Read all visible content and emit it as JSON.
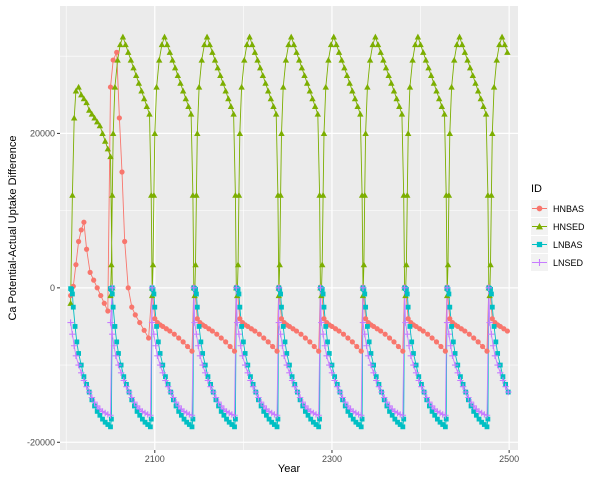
{
  "chart_data": {
    "type": "line",
    "xlabel": "Year",
    "ylabel": "Ca Potential-Actual Uptake Difference",
    "xlim": [
      1993,
      2510
    ],
    "ylim": [
      -21000,
      36500
    ],
    "x_ticks": [
      2100,
      2300,
      2500
    ],
    "y_ticks": [
      -20000,
      0,
      20000
    ],
    "x_tick_labels": [
      "2100",
      "2300",
      "2500"
    ],
    "y_tick_labels": [
      "-20000",
      "0",
      "20000"
    ],
    "grid": true,
    "legend": {
      "title": "ID",
      "position": "right",
      "entries": [
        {
          "label": "HNBAS",
          "color": "#F8766D",
          "marker": "circle"
        },
        {
          "label": "HNSED",
          "color": "#7CAE00",
          "marker": "triangle"
        },
        {
          "label": "LNBAS",
          "color": "#00BFC4",
          "marker": "square"
        },
        {
          "label": "LNSED",
          "color": "#C77CFF",
          "marker": "plus"
        }
      ]
    },
    "cycle": {
      "starts": [
        2005,
        2050,
        2097,
        2145,
        2193,
        2240,
        2288,
        2335,
        2383,
        2430,
        2478
      ],
      "length": 47
    },
    "series": [
      {
        "name": "HNBAS",
        "color": "#F8766D",
        "marker": "circle",
        "first_cycle": {
          "x": [
            2005,
            2008,
            2011,
            2014,
            2017,
            2020,
            2023,
            2027,
            2031,
            2035,
            2039,
            2043,
            2047
          ],
          "y": [
            -1000,
            200,
            3000,
            6000,
            7500,
            8500,
            5000,
            2000,
            1000,
            0,
            -1000,
            -2000,
            -3000
          ]
        },
        "peak_cycle_x": [
          2050,
          2053,
          2057,
          2060,
          2063,
          2066,
          2070,
          2074,
          2078,
          2083,
          2088,
          2093
        ],
        "peak_cycle_y": [
          26000,
          29500,
          30500,
          22000,
          15000,
          6000,
          0,
          -2500,
          -3500,
          -4500,
          -5500,
          -6500
        ],
        "typical_cycle": {
          "dx": [
            0,
            3,
            6,
            9,
            12,
            16,
            20,
            25,
            30,
            35,
            40,
            45,
            47
          ],
          "y": [
            -100,
            -4000,
            -4500,
            -4800,
            -5000,
            -5300,
            -5600,
            -6000,
            -6500,
            -7000,
            -7600,
            -8200,
            100
          ]
        }
      },
      {
        "name": "HNSED",
        "color": "#7CAE00",
        "marker": "triangle",
        "cycle_peak": 33000,
        "typical_cycle": {
          "dx": [
            0,
            1,
            2,
            3,
            5,
            8,
            11,
            14,
            17,
            20,
            23,
            26,
            29,
            32,
            35,
            38,
            41,
            44,
            46,
            47
          ],
          "y": [
            -1000,
            3000,
            12000,
            20000,
            26000,
            29500,
            31500,
            32500,
            31500,
            30500,
            29500,
            28500,
            27500,
            26500,
            25500,
            24500,
            23500,
            22500,
            12000,
            0
          ]
        },
        "first_cycle": {
          "dx": [
            0,
            2,
            4,
            6,
            9,
            12,
            15,
            18,
            21,
            24,
            27,
            30,
            33,
            36,
            39,
            42,
            45,
            47
          ],
          "y": [
            -2000,
            12000,
            22000,
            25500,
            26000,
            25000,
            24500,
            24000,
            23000,
            22500,
            22000,
            21500,
            21000,
            20000,
            19000,
            18000,
            17000,
            0
          ]
        }
      },
      {
        "name": "LNBAS",
        "color": "#00BFC4",
        "marker": "square",
        "typical_cycle": {
          "dx": [
            0,
            1,
            2,
            3,
            5,
            7,
            9,
            12,
            15,
            18,
            21,
            24,
            27,
            30,
            33,
            36,
            39,
            42,
            45,
            46,
            47
          ],
          "y": [
            -100,
            -200,
            -800,
            -2500,
            -5000,
            -7000,
            -8500,
            -10000,
            -11500,
            -12500,
            -13500,
            -14500,
            -15300,
            -16000,
            -16500,
            -17000,
            -17400,
            -17700,
            -18000,
            -17000,
            0
          ]
        }
      },
      {
        "name": "LNSED",
        "color": "#C77CFF",
        "marker": "plus",
        "typical_cycle": {
          "dx": [
            0,
            2,
            4,
            6,
            9,
            12,
            15,
            18,
            21,
            24,
            27,
            30,
            33,
            36,
            39,
            42,
            45,
            47
          ],
          "y": [
            -4500,
            -6000,
            -7500,
            -8800,
            -10000,
            -11000,
            -12000,
            -12800,
            -13500,
            -14200,
            -14800,
            -15300,
            -15700,
            -16000,
            -16200,
            -16400,
            -16500,
            0
          ]
        }
      }
    ]
  }
}
